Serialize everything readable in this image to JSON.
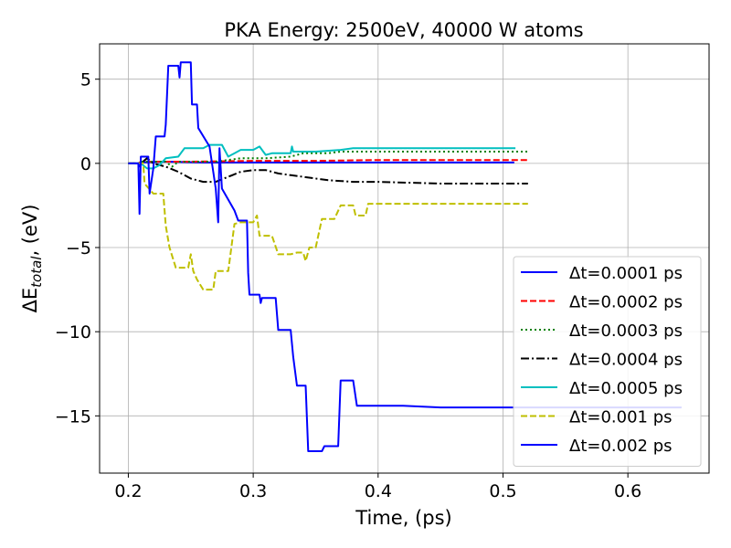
{
  "chart_data": {
    "type": "line",
    "title": "PKA Energy: 2500eV, 40000 W atoms",
    "xlabel": "Time, (ps)",
    "ylabel_prefix": "ΔE",
    "ylabel_sub": "total",
    "ylabel_suffix": ", (eV)",
    "xlim": [
      0.177,
      0.665
    ],
    "ylim": [
      -18.4,
      7.1
    ],
    "xticks": [
      0.2,
      0.3,
      0.4,
      0.5,
      0.6
    ],
    "xtick_labels": [
      "0.2",
      "0.3",
      "0.4",
      "0.5",
      "0.6"
    ],
    "yticks": [
      5,
      0,
      -5,
      -10,
      -15
    ],
    "ytick_labels": [
      "5",
      "0",
      "−5",
      "−10",
      "−15"
    ],
    "grid": true,
    "legend_position": "lower-right",
    "series": [
      {
        "name": "Δt=0.0001 ps",
        "legend_prefix": "Δt",
        "legend_suffix": "=0.0001 ps",
        "color": "#0000ff",
        "dash": "solid",
        "points": [
          [
            0.2,
            0
          ],
          [
            0.209,
            0
          ],
          [
            0.2095,
            -0.2
          ],
          [
            0.21,
            0.05
          ],
          [
            0.23,
            0.1
          ],
          [
            0.26,
            0.05
          ],
          [
            0.3,
            0.05
          ],
          [
            0.35,
            0.05
          ],
          [
            0.4,
            0.05
          ],
          [
            0.45,
            0.05
          ],
          [
            0.509,
            0.05
          ]
        ]
      },
      {
        "name": "Δt=0.0002 ps",
        "legend_prefix": "Δt",
        "legend_suffix": "=0.0002 ps",
        "color": "#ff0000",
        "dash": "dashed",
        "points": [
          [
            0.2,
            0
          ],
          [
            0.208,
            0
          ],
          [
            0.21,
            0.1
          ],
          [
            0.25,
            0.1
          ],
          [
            0.3,
            0.15
          ],
          [
            0.35,
            0.15
          ],
          [
            0.4,
            0.2
          ],
          [
            0.45,
            0.2
          ],
          [
            0.5,
            0.2
          ],
          [
            0.52,
            0.2
          ]
        ]
      },
      {
        "name": "Δt=0.0003 ps",
        "legend_prefix": "Δt",
        "legend_suffix": "=0.0003 ps",
        "color": "#008000",
        "dash": "dotted",
        "points": [
          [
            0.2,
            0
          ],
          [
            0.208,
            0
          ],
          [
            0.21,
            0.1
          ],
          [
            0.23,
            0.1
          ],
          [
            0.235,
            -0.2
          ],
          [
            0.24,
            0.1
          ],
          [
            0.27,
            0.1
          ],
          [
            0.29,
            0.3
          ],
          [
            0.31,
            0.3
          ],
          [
            0.33,
            0.4
          ],
          [
            0.34,
            0.6
          ],
          [
            0.36,
            0.6
          ],
          [
            0.37,
            0.7
          ],
          [
            0.52,
            0.7
          ]
        ]
      },
      {
        "name": "Δt=0.0004 ps",
        "legend_prefix": "Δt",
        "legend_suffix": "=0.0004 ps",
        "color": "#000000",
        "dash": "dashdot",
        "points": [
          [
            0.2,
            0
          ],
          [
            0.21,
            0
          ],
          [
            0.215,
            0.3
          ],
          [
            0.22,
            0
          ],
          [
            0.23,
            -0.2
          ],
          [
            0.24,
            -0.5
          ],
          [
            0.25,
            -0.9
          ],
          [
            0.26,
            -1.1
          ],
          [
            0.27,
            -1.1
          ],
          [
            0.28,
            -0.8
          ],
          [
            0.29,
            -0.5
          ],
          [
            0.3,
            -0.4
          ],
          [
            0.31,
            -0.4
          ],
          [
            0.32,
            -0.6
          ],
          [
            0.33,
            -0.7
          ],
          [
            0.34,
            -0.8
          ],
          [
            0.36,
            -1.0
          ],
          [
            0.38,
            -1.1
          ],
          [
            0.4,
            -1.1
          ],
          [
            0.45,
            -1.2
          ],
          [
            0.52,
            -1.2
          ]
        ]
      },
      {
        "name": "Δt=0.0005 ps",
        "legend_prefix": "Δt",
        "legend_suffix": "=0.0005 ps",
        "color": "#00bfbf",
        "dash": "solid",
        "points": [
          [
            0.2,
            0
          ],
          [
            0.21,
            0
          ],
          [
            0.215,
            -0.3
          ],
          [
            0.22,
            -0.3
          ],
          [
            0.225,
            -0.1
          ],
          [
            0.23,
            0.3
          ],
          [
            0.24,
            0.4
          ],
          [
            0.245,
            0.9
          ],
          [
            0.26,
            0.9
          ],
          [
            0.265,
            1.1
          ],
          [
            0.275,
            1.1
          ],
          [
            0.28,
            0.4
          ],
          [
            0.29,
            0.8
          ],
          [
            0.3,
            0.8
          ],
          [
            0.305,
            1.0
          ],
          [
            0.31,
            0.5
          ],
          [
            0.315,
            0.6
          ],
          [
            0.33,
            0.6
          ],
          [
            0.331,
            1.0
          ],
          [
            0.332,
            0.7
          ],
          [
            0.35,
            0.7
          ],
          [
            0.37,
            0.8
          ],
          [
            0.38,
            0.9
          ],
          [
            0.4,
            0.9
          ],
          [
            0.45,
            0.9
          ],
          [
            0.51,
            0.9
          ]
        ]
      },
      {
        "name": "Δt=0.001 ps",
        "legend_prefix": "Δt",
        "legend_suffix": "=0.001 ps",
        "color": "#bfbf00",
        "dash": "dashed",
        "points": [
          [
            0.2,
            0
          ],
          [
            0.212,
            0
          ],
          [
            0.213,
            -1.2
          ],
          [
            0.22,
            -1.8
          ],
          [
            0.228,
            -1.8
          ],
          [
            0.23,
            -3.7
          ],
          [
            0.233,
            -5.0
          ],
          [
            0.238,
            -6.2
          ],
          [
            0.248,
            -6.2
          ],
          [
            0.25,
            -5.4
          ],
          [
            0.252,
            -6.4
          ],
          [
            0.255,
            -6.9
          ],
          [
            0.26,
            -7.5
          ],
          [
            0.268,
            -7.5
          ],
          [
            0.27,
            -6.4
          ],
          [
            0.28,
            -6.4
          ],
          [
            0.285,
            -3.6
          ],
          [
            0.29,
            -3.5
          ],
          [
            0.3,
            -3.5
          ],
          [
            0.303,
            -3.1
          ],
          [
            0.305,
            -4.3
          ],
          [
            0.315,
            -4.3
          ],
          [
            0.32,
            -5.4
          ],
          [
            0.33,
            -5.4
          ],
          [
            0.335,
            -5.3
          ],
          [
            0.34,
            -5.3
          ],
          [
            0.342,
            -5.8
          ],
          [
            0.345,
            -5.0
          ],
          [
            0.35,
            -5.0
          ],
          [
            0.355,
            -3.3
          ],
          [
            0.365,
            -3.3
          ],
          [
            0.37,
            -2.5
          ],
          [
            0.38,
            -2.5
          ],
          [
            0.382,
            -3.1
          ],
          [
            0.39,
            -3.1
          ],
          [
            0.392,
            -2.4
          ],
          [
            0.4,
            -2.4
          ],
          [
            0.45,
            -2.4
          ],
          [
            0.52,
            -2.4
          ]
        ]
      },
      {
        "name": "Δt=0.002 ps",
        "legend_prefix": "Δt",
        "legend_suffix": "=0.002 ps",
        "color": "#0000ff",
        "dash": "solid",
        "points": [
          [
            0.2,
            0
          ],
          [
            0.208,
            0
          ],
          [
            0.209,
            -3.0
          ],
          [
            0.21,
            0.4
          ],
          [
            0.216,
            0.4
          ],
          [
            0.217,
            -1.8
          ],
          [
            0.22,
            -0.3
          ],
          [
            0.222,
            1.6
          ],
          [
            0.229,
            1.6
          ],
          [
            0.23,
            2.3
          ],
          [
            0.232,
            5.8
          ],
          [
            0.24,
            5.8
          ],
          [
            0.241,
            5.1
          ],
          [
            0.242,
            6.0
          ],
          [
            0.25,
            6.0
          ],
          [
            0.251,
            3.5
          ],
          [
            0.255,
            3.5
          ],
          [
            0.256,
            2.1
          ],
          [
            0.265,
            1.0
          ],
          [
            0.27,
            -1.5
          ],
          [
            0.272,
            -3.5
          ],
          [
            0.273,
            0.9
          ],
          [
            0.275,
            -1.5
          ],
          [
            0.285,
            -2.8
          ],
          [
            0.288,
            -3.4
          ],
          [
            0.295,
            -3.4
          ],
          [
            0.296,
            -6.5
          ],
          [
            0.297,
            -7.8
          ],
          [
            0.305,
            -7.8
          ],
          [
            0.306,
            -8.3
          ],
          [
            0.307,
            -8.0
          ],
          [
            0.318,
            -8.0
          ],
          [
            0.32,
            -9.9
          ],
          [
            0.33,
            -9.9
          ],
          [
            0.332,
            -11.5
          ],
          [
            0.335,
            -13.2
          ],
          [
            0.342,
            -13.2
          ],
          [
            0.344,
            -17.1
          ],
          [
            0.355,
            -17.1
          ],
          [
            0.357,
            -16.8
          ],
          [
            0.368,
            -16.8
          ],
          [
            0.37,
            -12.9
          ],
          [
            0.38,
            -12.9
          ],
          [
            0.383,
            -14.4
          ],
          [
            0.42,
            -14.4
          ],
          [
            0.45,
            -14.5
          ],
          [
            0.5,
            -14.5
          ],
          [
            0.55,
            -14.5
          ],
          [
            0.6,
            -14.5
          ],
          [
            0.643,
            -14.5
          ]
        ]
      }
    ]
  }
}
